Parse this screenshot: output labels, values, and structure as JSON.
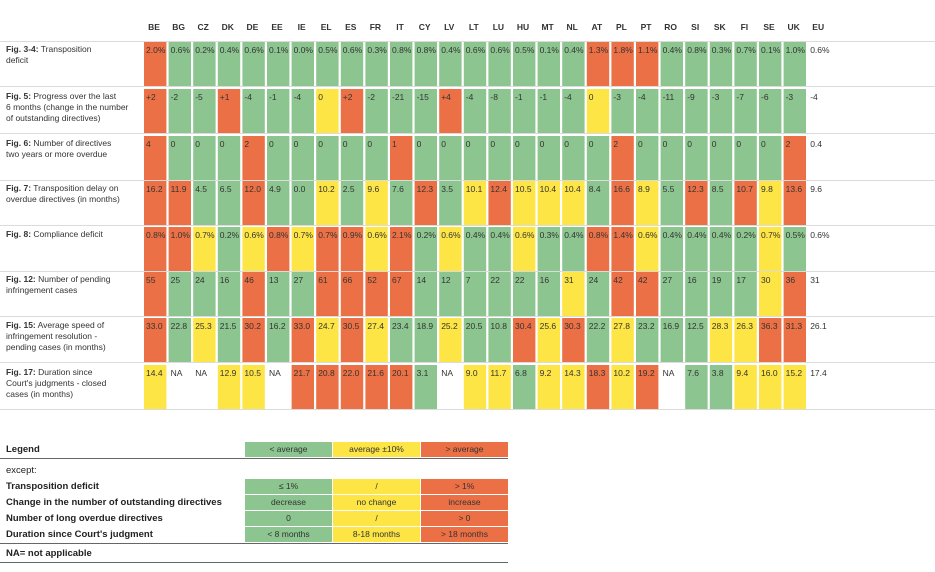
{
  "chart_data": {
    "type": "heatmap",
    "colors": {
      "green": "#8cc58f",
      "yellow": "#fde546",
      "red": "#ec7045",
      "none": "#ffffff"
    },
    "columns": [
      "BE",
      "BG",
      "CZ",
      "DK",
      "DE",
      "EE",
      "IE",
      "EL",
      "ES",
      "FR",
      "IT",
      "CY",
      "LV",
      "LT",
      "LU",
      "HU",
      "MT",
      "NL",
      "AT",
      "PL",
      "PT",
      "RO",
      "SI",
      "SK",
      "FI",
      "SE",
      "UK",
      "EU"
    ],
    "rows": [
      {
        "label_bold": "Fig. 3-4:",
        "label": "Transposition deficit",
        "values": [
          "2.0%",
          "0.6%",
          "0.2%",
          "0.4%",
          "0.6%",
          "0.1%",
          "0.0%",
          "0.5%",
          "0.6%",
          "0.3%",
          "0.8%",
          "0.8%",
          "0.4%",
          "0.6%",
          "0.6%",
          "0.5%",
          "0.1%",
          "0.4%",
          "1.3%",
          "1.8%",
          "1.1%",
          "0.4%",
          "0.8%",
          "0.3%",
          "0.7%",
          "0.1%",
          "1.0%",
          "0.6%"
        ],
        "colors": [
          "r",
          "g",
          "g",
          "g",
          "g",
          "g",
          "g",
          "g",
          "g",
          "g",
          "g",
          "g",
          "g",
          "g",
          "g",
          "g",
          "g",
          "g",
          "r",
          "r",
          "r",
          "g",
          "g",
          "g",
          "g",
          "g",
          "g",
          "n"
        ]
      },
      {
        "label_bold": "Fig. 5:",
        "label": "Progress over the last 6 months (change in the number of outstanding directives)",
        "values": [
          "+2",
          "-2",
          "-5",
          "+1",
          "-4",
          "-1",
          "-4",
          "0",
          "+2",
          "-2",
          "-21",
          "-15",
          "+4",
          "-4",
          "-8",
          "-1",
          "-1",
          "-4",
          "0",
          "-3",
          "-4",
          "-11",
          "-9",
          "-3",
          "-7",
          "-6",
          "-3",
          "-4"
        ],
        "colors": [
          "r",
          "g",
          "g",
          "r",
          "g",
          "g",
          "g",
          "y",
          "r",
          "g",
          "g",
          "g",
          "r",
          "g",
          "g",
          "g",
          "g",
          "g",
          "y",
          "g",
          "g",
          "g",
          "g",
          "g",
          "g",
          "g",
          "g",
          "n"
        ]
      },
      {
        "label_bold": "Fig. 6:",
        "label": "Number of directives two years or more overdue",
        "values": [
          "4",
          "0",
          "0",
          "0",
          "2",
          "0",
          "0",
          "0",
          "0",
          "0",
          "1",
          "0",
          "0",
          "0",
          "0",
          "0",
          "0",
          "0",
          "0",
          "2",
          "0",
          "0",
          "0",
          "0",
          "0",
          "0",
          "2",
          "0.4"
        ],
        "colors": [
          "r",
          "g",
          "g",
          "g",
          "r",
          "g",
          "g",
          "g",
          "g",
          "g",
          "r",
          "g",
          "g",
          "g",
          "g",
          "g",
          "g",
          "g",
          "g",
          "r",
          "g",
          "g",
          "g",
          "g",
          "g",
          "g",
          "r",
          "n"
        ]
      },
      {
        "label_bold": "Fig. 7:",
        "label": "Transposition delay on overdue directives (in months)",
        "values": [
          "16.2",
          "11.9",
          "4.5",
          "6.5",
          "12.0",
          "4.9",
          "0.0",
          "10.2",
          "2.5",
          "9.6",
          "7.6",
          "12.3",
          "3.5",
          "10.1",
          "12.4",
          "10.5",
          "10.4",
          "10.4",
          "8.4",
          "16.6",
          "8.9",
          "5.5",
          "12.3",
          "8.5",
          "10.7",
          "9.8",
          "13.6",
          "9.6"
        ],
        "colors": [
          "r",
          "r",
          "g",
          "g",
          "r",
          "g",
          "g",
          "y",
          "g",
          "y",
          "g",
          "r",
          "g",
          "y",
          "r",
          "y",
          "y",
          "y",
          "g",
          "r",
          "y",
          "g",
          "r",
          "g",
          "r",
          "y",
          "r",
          "n"
        ]
      },
      {
        "label_bold": "Fig. 8:",
        "label": "Compliance deficit",
        "values": [
          "0.8%",
          "1.0%",
          "0.7%",
          "0.2%",
          "0.6%",
          "0.8%",
          "0.7%",
          "0.7%",
          "0.9%",
          "0.6%",
          "2.1%",
          "0.2%",
          "0.6%",
          "0.4%",
          "0.4%",
          "0.6%",
          "0.3%",
          "0.4%",
          "0.8%",
          "1.4%",
          "0.6%",
          "0.4%",
          "0.4%",
          "0.4%",
          "0.2%",
          "0.7%",
          "0.5%",
          "0.6%"
        ],
        "colors": [
          "r",
          "r",
          "y",
          "g",
          "y",
          "r",
          "y",
          "r",
          "r",
          "y",
          "r",
          "g",
          "y",
          "g",
          "g",
          "y",
          "g",
          "g",
          "r",
          "r",
          "y",
          "g",
          "g",
          "g",
          "g",
          "y",
          "g",
          "n"
        ]
      },
      {
        "label_bold": "Fig. 12:",
        "label": "Number of pending infringement cases",
        "values": [
          "55",
          "25",
          "24",
          "16",
          "46",
          "13",
          "27",
          "61",
          "66",
          "52",
          "67",
          "14",
          "12",
          "7",
          "22",
          "22",
          "16",
          "31",
          "24",
          "42",
          "42",
          "27",
          "16",
          "19",
          "17",
          "30",
          "36",
          "31"
        ],
        "colors": [
          "r",
          "g",
          "g",
          "g",
          "r",
          "g",
          "g",
          "r",
          "r",
          "r",
          "r",
          "g",
          "g",
          "g",
          "g",
          "g",
          "g",
          "y",
          "g",
          "r",
          "r",
          "g",
          "g",
          "g",
          "g",
          "y",
          "r",
          "n"
        ]
      },
      {
        "label_bold": "Fig. 15:",
        "label": "Average speed of infringement resolution - pending cases (in months)",
        "values": [
          "33.0",
          "22.8",
          "25.3",
          "21.5",
          "30.2",
          "16.2",
          "33.0",
          "24.7",
          "30.5",
          "27.4",
          "23.4",
          "18.9",
          "25.2",
          "20.5",
          "10.8",
          "30.4",
          "25.6",
          "30.3",
          "22.2",
          "27.8",
          "23.2",
          "16.9",
          "12.5",
          "28.3",
          "26.3",
          "36.3",
          "31.3",
          "26.1"
        ],
        "colors": [
          "r",
          "g",
          "y",
          "g",
          "r",
          "g",
          "r",
          "y",
          "r",
          "y",
          "g",
          "g",
          "y",
          "g",
          "g",
          "r",
          "y",
          "r",
          "g",
          "y",
          "g",
          "g",
          "g",
          "y",
          "y",
          "r",
          "r",
          "n"
        ]
      },
      {
        "label_bold": "Fig. 17:",
        "label": "Duration since Court's judgments - closed cases (in months)",
        "values": [
          "14.4",
          "NA",
          "NA",
          "12.9",
          "10.5",
          "NA",
          "21.7",
          "20.8",
          "22.0",
          "21.6",
          "20.1",
          "3.1",
          "NA",
          "9.0",
          "11.7",
          "6.8",
          "9.2",
          "14.3",
          "18.3",
          "10.2",
          "19.2",
          "NA",
          "7.6",
          "3.8",
          "9.4",
          "16.0",
          "15.2",
          "17.4"
        ],
        "colors": [
          "y",
          "n",
          "n",
          "y",
          "y",
          "n",
          "r",
          "r",
          "r",
          "r",
          "r",
          "g",
          "n",
          "y",
          "y",
          "g",
          "y",
          "y",
          "r",
          "y",
          "r",
          "n",
          "g",
          "g",
          "y",
          "y",
          "y",
          "n"
        ]
      }
    ]
  },
  "legend": {
    "title": "Legend",
    "header": [
      "< average",
      "average ±10%",
      "> average"
    ],
    "except": "except:",
    "rows": [
      {
        "label": "Transposition deficit",
        "cells": [
          "≤ 1%",
          "/",
          "> 1%"
        ]
      },
      {
        "label": "Change in the number of outstanding directives",
        "cells": [
          "decrease",
          "no change",
          "increase"
        ]
      },
      {
        "label": "Number of long overdue directives",
        "cells": [
          "0",
          "/",
          "> 0"
        ]
      },
      {
        "label": "Duration since Court's judgment",
        "cells": [
          "< 8 months",
          "8-18 months",
          "> 18 months"
        ]
      }
    ],
    "na_note": "NA= not applicable"
  }
}
